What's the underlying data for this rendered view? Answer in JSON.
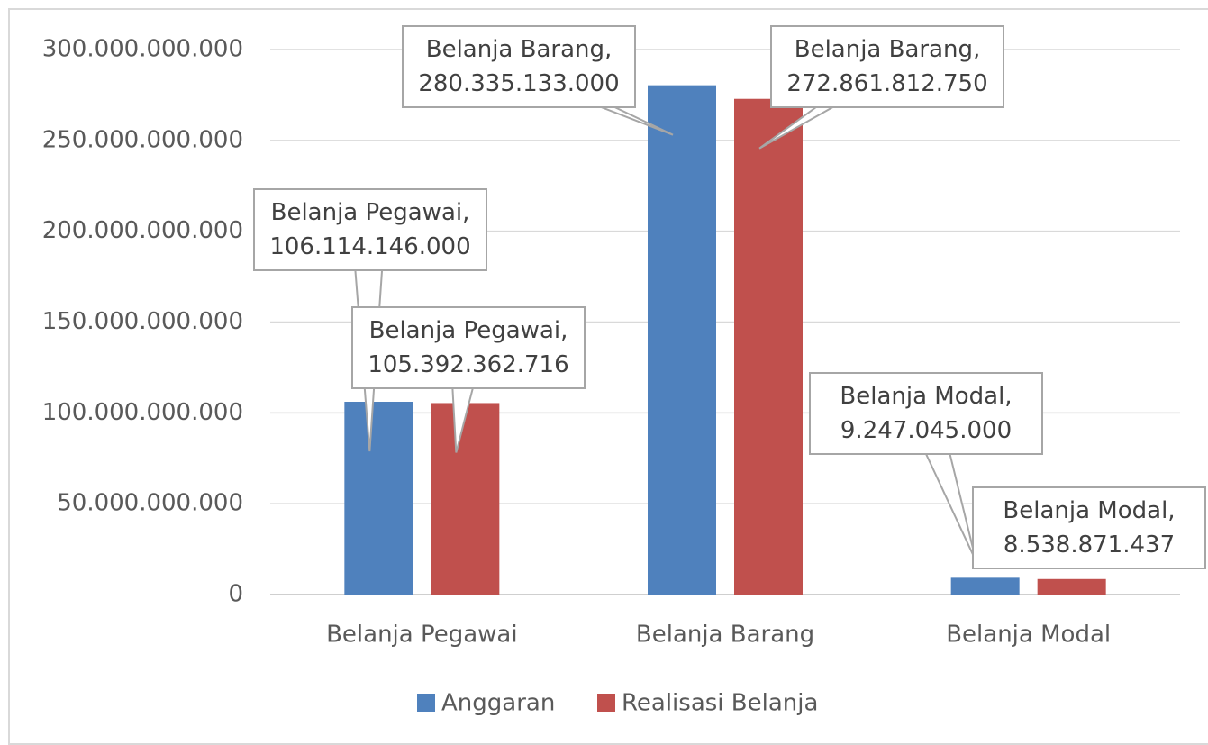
{
  "chart_data": {
    "type": "bar",
    "categories": [
      "Belanja Pegawai",
      "Belanja Barang",
      "Belanja Modal"
    ],
    "series": [
      {
        "name": "Anggaran",
        "color": "#4f81bd",
        "values": [
          106114146000,
          280335133000,
          9247045000
        ],
        "value_labels": [
          "Belanja Pegawai, 106.114.146.000",
          "Belanja Barang, 280.335.133.000",
          "Belanja Modal, 9.247.045.000"
        ]
      },
      {
        "name": "Realisasi Belanja",
        "color": "#c0504d",
        "values": [
          105392362716,
          272861812750,
          8538871437
        ],
        "value_labels": [
          "Belanja Pegawai, 105.392.362.716",
          "Belanja Barang, 272.861.812.750",
          "Belanja Modal, 8.538.871.437"
        ]
      }
    ],
    "ylim": [
      0,
      300000000000
    ],
    "yticks": [
      0,
      {
        "value": 50000000000,
        "label": "50.000.000.000"
      },
      {
        "value": 100000000000,
        "label": "100.000.000.000"
      },
      {
        "value": 150000000000,
        "label": "150.000.000.000"
      },
      {
        "value": 200000000000,
        "label": "200.000.000.000"
      },
      {
        "value": 250000000000,
        "label": "250.000.000.000"
      },
      {
        "value": 300000000000,
        "label": "300.000.000.000"
      }
    ],
    "grid": true,
    "legend": "bottom"
  }
}
